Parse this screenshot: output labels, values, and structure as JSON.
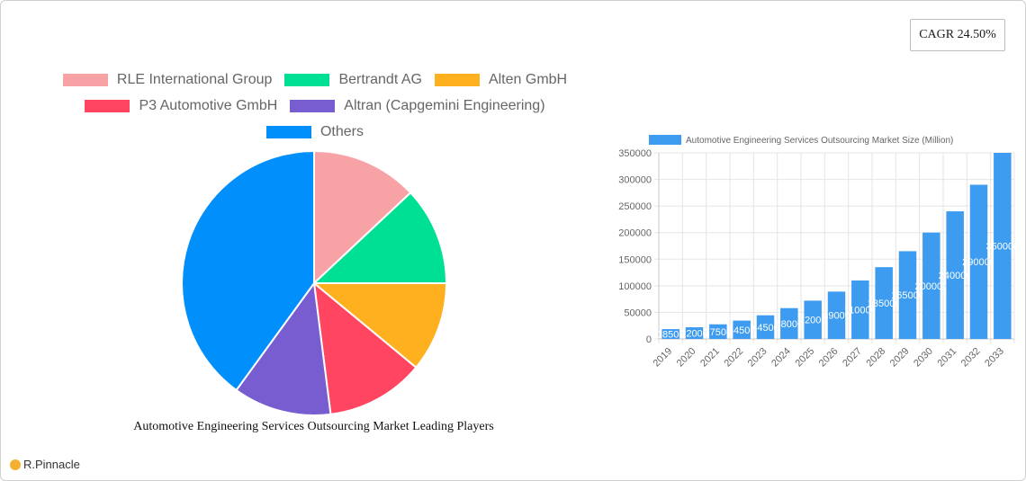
{
  "cagr_badge": {
    "label": "CAGR 24.50%"
  },
  "brand": {
    "name": "R.Pinnacle"
  },
  "pie_chart": {
    "title": "Automotive Engineering Services Outsourcing Market Leading Players",
    "legend": [
      {
        "label": "RLE International Group",
        "color": "#f7a3a6"
      },
      {
        "label": "Bertrandt AG",
        "color": "#00e094"
      },
      {
        "label": "Alten GmbH",
        "color": "#ffb01f"
      },
      {
        "label": "P3 Automotive GmbH",
        "color": "#ff4560"
      },
      {
        "label": "Altran (Capgemini Engineering)",
        "color": "#775dd0"
      },
      {
        "label": "Others",
        "color": "#008ffb"
      }
    ]
  },
  "bar_chart": {
    "legend_label": "Automotive Engineering Services Outsourcing Market Size (Million)",
    "bar_color": "#3d9bf0"
  },
  "chart_data": [
    {
      "type": "pie",
      "title": "Automotive Engineering Services Outsourcing Market Leading Players",
      "categories": [
        "RLE International Group",
        "Bertrandt AG",
        "Alten GmbH",
        "P3 Automotive GmbH",
        "Altran (Capgemini Engineering)",
        "Others"
      ],
      "values": [
        13,
        12,
        11,
        12,
        12,
        40
      ],
      "colors": [
        "#f7a3a6",
        "#00e094",
        "#ffb01f",
        "#ff4560",
        "#775dd0",
        "#008ffb"
      ],
      "legend_position": "top"
    },
    {
      "type": "bar",
      "title": "",
      "xlabel": "",
      "ylabel": "",
      "series": [
        {
          "name": "Automotive Engineering Services Outsourcing Market Size (Million)",
          "values": [
            18500,
            22000,
            27500,
            34500,
            44500,
            58000,
            72000,
            89000,
            110000,
            135000,
            165000,
            200000,
            240000,
            290000,
            350000
          ]
        }
      ],
      "categories": [
        "2019",
        "2020",
        "2021",
        "2022",
        "2023",
        "2024",
        "2025",
        "2026",
        "2027",
        "2028",
        "2029",
        "2030",
        "2031",
        "2032",
        "2033"
      ],
      "ylim": [
        0,
        350000
      ],
      "yticks": [
        0,
        50000,
        100000,
        150000,
        200000,
        250000,
        300000,
        350000
      ],
      "grid": true,
      "legend_position": "top",
      "data_labels": true
    }
  ]
}
